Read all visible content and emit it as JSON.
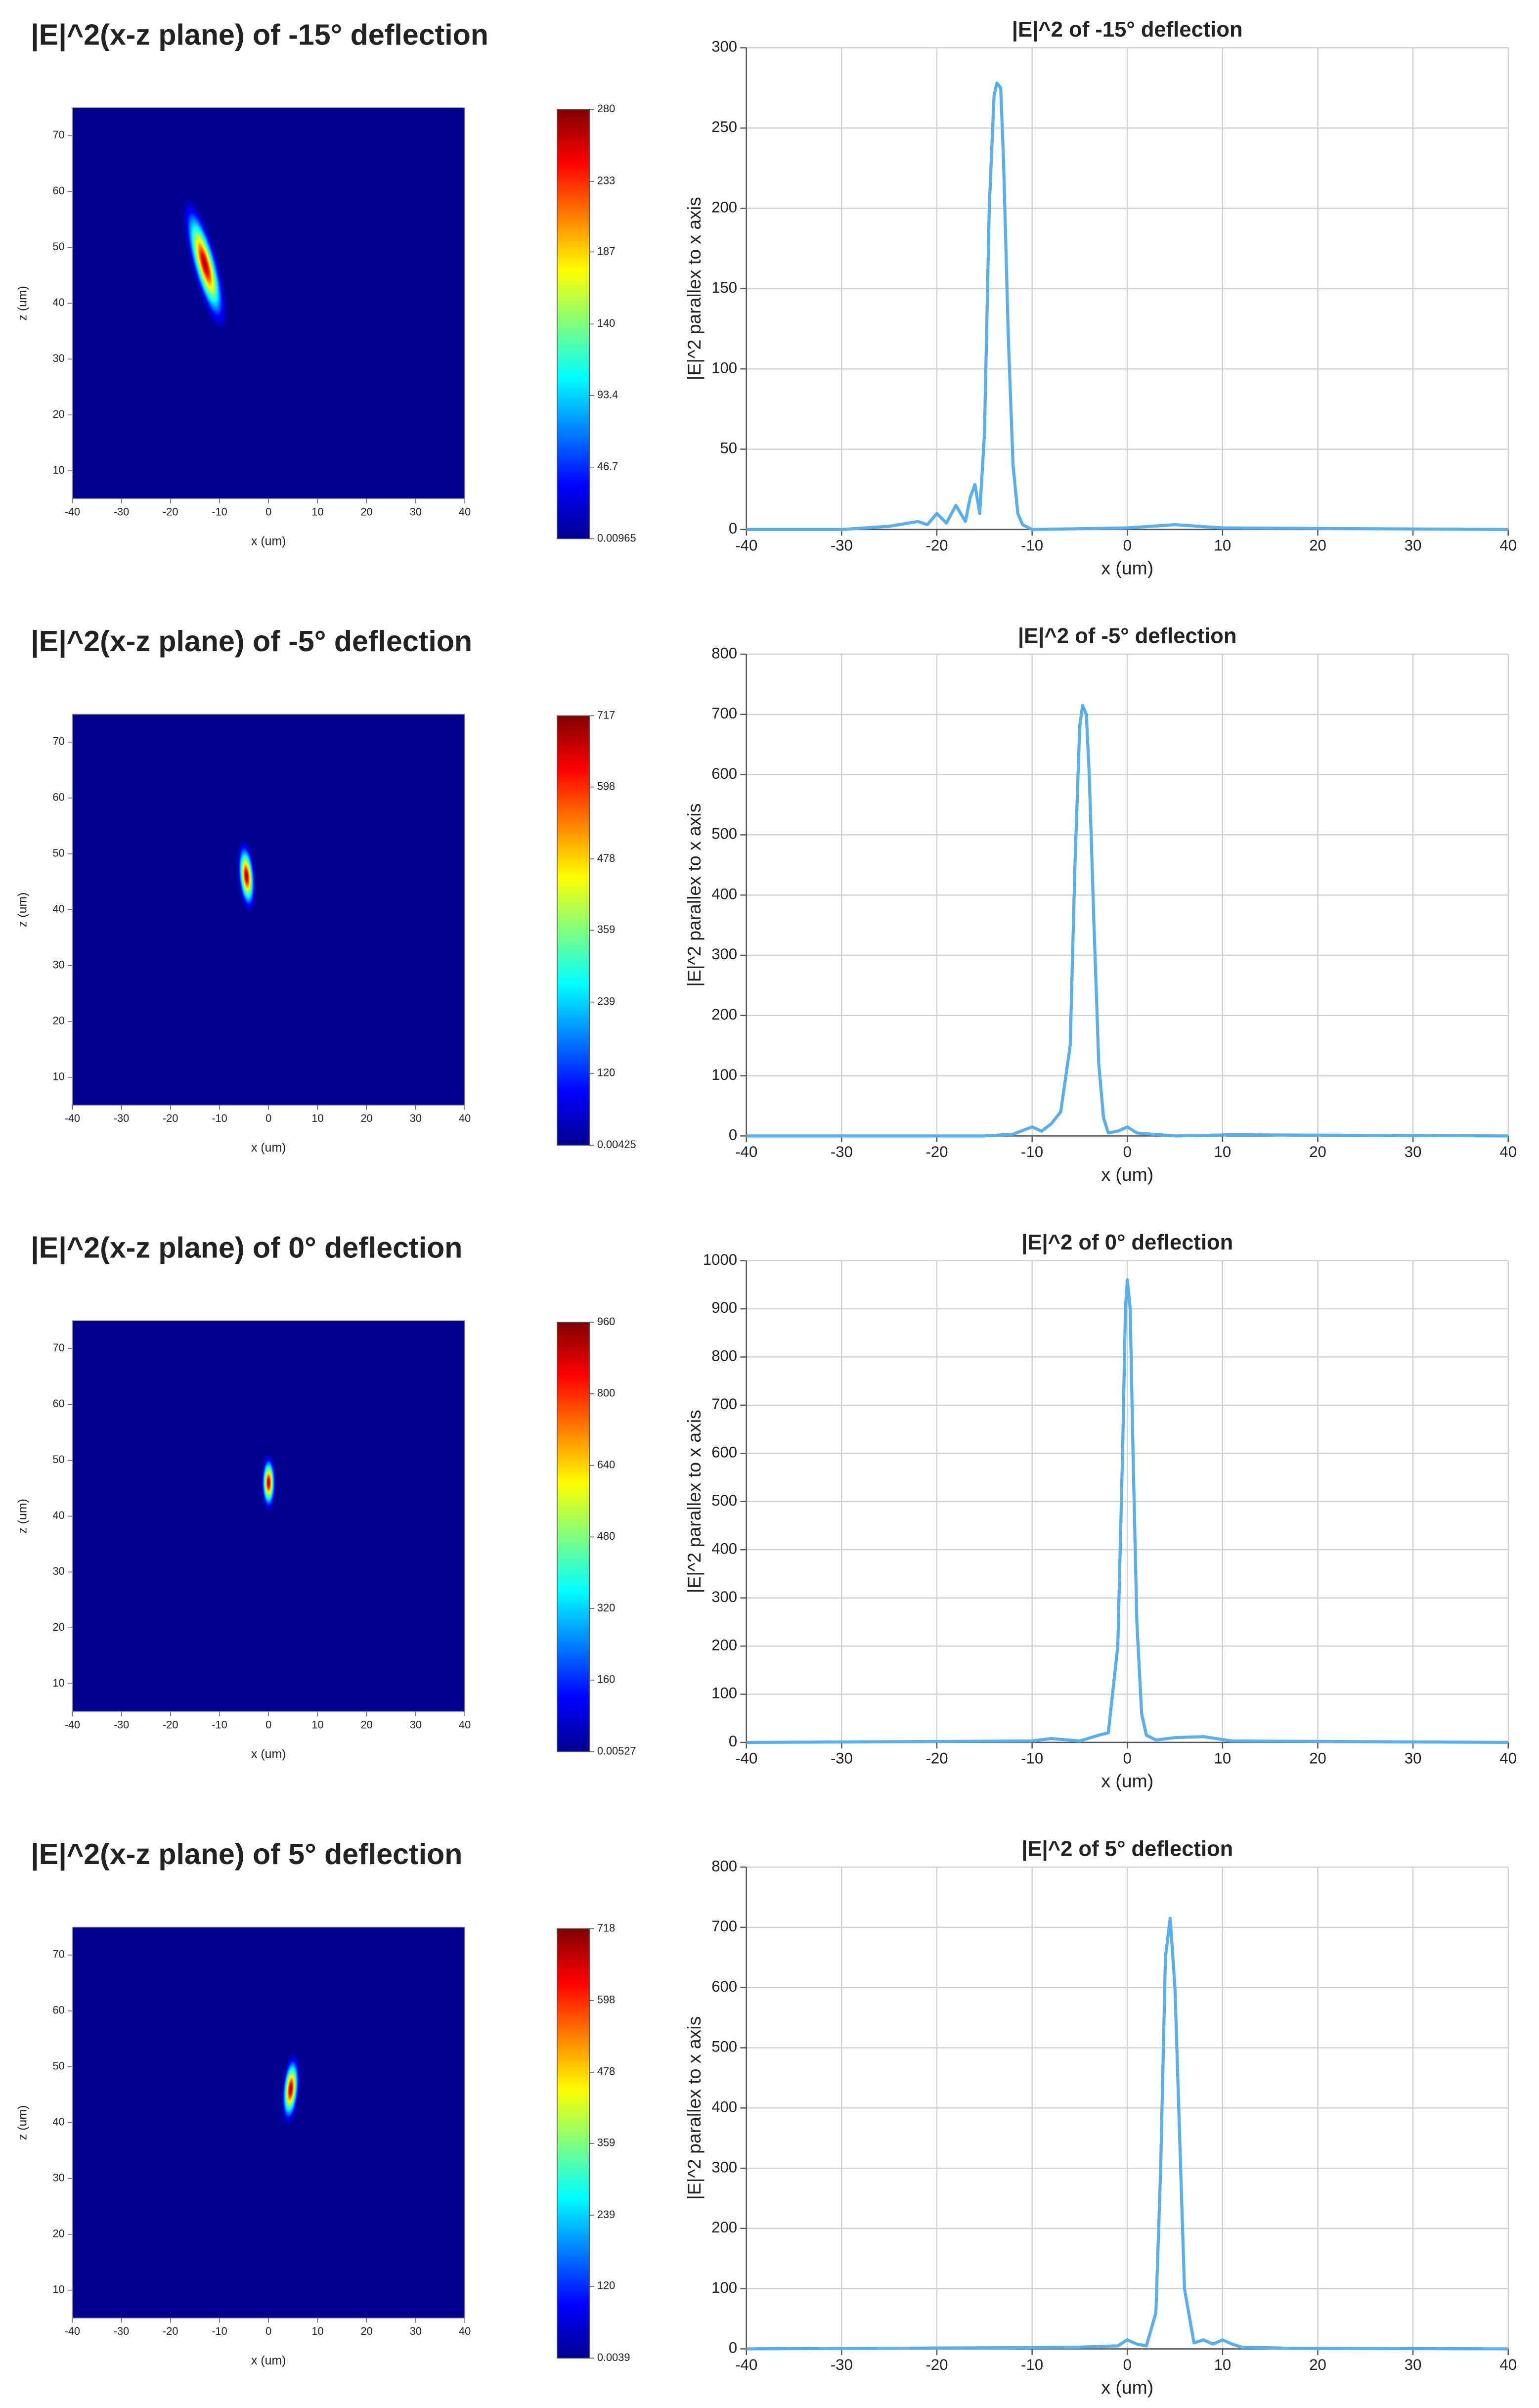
{
  "chart_data": [
    {
      "type": "heatmap",
      "title": "|E|^2(x-z plane) of -15° deflection",
      "xlabel": "x (um)",
      "ylabel": "z (um)",
      "xlim": [
        -40,
        40
      ],
      "xticks": [
        -40,
        -30,
        -20,
        -10,
        0,
        10,
        20,
        30,
        40
      ],
      "ylim": [
        5,
        75
      ],
      "yticks": [
        10,
        20,
        30,
        40,
        50,
        60,
        70
      ],
      "clim": [
        0.00965,
        280
      ],
      "cticks": [
        280,
        233,
        187,
        140,
        93.4,
        46.7,
        0.00965
      ],
      "peak": {
        "x": -13,
        "z": 47,
        "value": 280
      }
    },
    {
      "type": "line",
      "title": "|E|^2 of -15° deflection",
      "xlabel": "x (um)",
      "ylabel": "|E|^2 parallex to x axis",
      "color": "#5aaeea",
      "grid": true,
      "xlim": [
        -40,
        40
      ],
      "xticks": [
        -40,
        -30,
        -20,
        -10,
        0,
        10,
        20,
        30,
        40
      ],
      "ylim": [
        0,
        300
      ],
      "yticks": [
        0,
        50,
        100,
        150,
        200,
        250,
        300
      ],
      "x": [
        -40,
        -30,
        -25,
        -22,
        -21,
        -20,
        -19,
        -18,
        -17,
        -16.5,
        -16,
        -15.5,
        -15,
        -14.5,
        -14,
        -13.7,
        -13.3,
        -13,
        -12.5,
        -12,
        -11.5,
        -11,
        -10,
        0,
        5,
        10,
        40
      ],
      "values": [
        0,
        0,
        2,
        5,
        3,
        10,
        4,
        15,
        5,
        20,
        28,
        10,
        60,
        200,
        270,
        278,
        275,
        230,
        120,
        40,
        10,
        3,
        0,
        1,
        3,
        1,
        0
      ]
    },
    {
      "type": "heatmap",
      "title": "|E|^2(x-z plane) of -5° deflection",
      "xlabel": "x (um)",
      "ylabel": "z (um)",
      "xlim": [
        -40,
        40
      ],
      "xticks": [
        -40,
        -30,
        -20,
        -10,
        0,
        10,
        20,
        30,
        40
      ],
      "ylim": [
        5,
        75
      ],
      "yticks": [
        10,
        20,
        30,
        40,
        50,
        60,
        70
      ],
      "clim": [
        0.00425,
        717
      ],
      "cticks": [
        717,
        598,
        478,
        359,
        239,
        120,
        0.00425
      ],
      "peak": {
        "x": -4.5,
        "z": 46,
        "value": 717
      }
    },
    {
      "type": "line",
      "title": "|E|^2 of -5° deflection",
      "xlabel": "x (um)",
      "ylabel": "|E|^2 parallex to x axis",
      "color": "#5aaeea",
      "grid": true,
      "xlim": [
        -40,
        40
      ],
      "xticks": [
        -40,
        -30,
        -20,
        -10,
        0,
        10,
        20,
        30,
        40
      ],
      "ylim": [
        0,
        800
      ],
      "yticks": [
        0,
        100,
        200,
        300,
        400,
        500,
        600,
        700,
        800
      ],
      "x": [
        -40,
        -15,
        -12,
        -10,
        -9,
        -8,
        -7,
        -6,
        -5.5,
        -5,
        -4.7,
        -4.3,
        -4,
        -3.5,
        -3,
        -2.5,
        -2,
        -1,
        0,
        1,
        5,
        11,
        40
      ],
      "values": [
        0,
        0,
        3,
        15,
        8,
        20,
        40,
        150,
        450,
        680,
        715,
        700,
        600,
        350,
        120,
        30,
        5,
        8,
        15,
        5,
        0,
        2,
        0
      ]
    },
    {
      "type": "heatmap",
      "title": "|E|^2(x-z plane) of 0° deflection",
      "xlabel": "x (um)",
      "ylabel": "z (um)",
      "xlim": [
        -40,
        40
      ],
      "xticks": [
        -40,
        -30,
        -20,
        -10,
        0,
        10,
        20,
        30,
        40
      ],
      "ylim": [
        5,
        75
      ],
      "yticks": [
        10,
        20,
        30,
        40,
        50,
        60,
        70
      ],
      "clim": [
        0.00527,
        960
      ],
      "cticks": [
        960,
        800,
        640,
        480,
        320,
        160,
        0.00527
      ],
      "peak": {
        "x": 0,
        "z": 46,
        "value": 960
      }
    },
    {
      "type": "line",
      "title": "|E|^2 of 0° deflection",
      "xlabel": "x (um)",
      "ylabel": "|E|^2 parallex to x axis",
      "color": "#5aaeea",
      "grid": true,
      "xlim": [
        -40,
        40
      ],
      "xticks": [
        -40,
        -30,
        -20,
        -10,
        0,
        10,
        20,
        30,
        40
      ],
      "ylim": [
        0,
        1000
      ],
      "yticks": [
        0,
        100,
        200,
        300,
        400,
        500,
        600,
        700,
        800,
        900,
        1000
      ],
      "x": [
        -40,
        -10,
        -8,
        -5,
        -3,
        -2,
        -1,
        -0.5,
        -0.2,
        0,
        0.3,
        0.6,
        1,
        1.5,
        2,
        3,
        5,
        8,
        11,
        40
      ],
      "values": [
        0,
        3,
        8,
        3,
        15,
        20,
        200,
        600,
        900,
        960,
        900,
        600,
        250,
        60,
        15,
        5,
        10,
        12,
        3,
        0
      ]
    },
    {
      "type": "heatmap",
      "title": "|E|^2(x-z plane) of 5° deflection",
      "xlabel": "x (um)",
      "ylabel": "z (um)",
      "xlim": [
        -40,
        40
      ],
      "xticks": [
        -40,
        -30,
        -20,
        -10,
        0,
        10,
        20,
        30,
        40
      ],
      "ylim": [
        5,
        75
      ],
      "yticks": [
        10,
        20,
        30,
        40,
        50,
        60,
        70
      ],
      "clim": [
        0.0039,
        718
      ],
      "cticks": [
        718,
        598,
        478,
        359,
        239,
        120,
        0.0039
      ],
      "peak": {
        "x": 4.5,
        "z": 46,
        "value": 718
      }
    },
    {
      "type": "line",
      "title": "|E|^2 of 5° deflection",
      "xlabel": "x (um)",
      "ylabel": "|E|^2 parallex to x axis",
      "color": "#5aaeea",
      "grid": true,
      "xlim": [
        -40,
        40
      ],
      "xticks": [
        -40,
        -30,
        -20,
        -10,
        0,
        10,
        20,
        30,
        40
      ],
      "ylim": [
        0,
        800
      ],
      "yticks": [
        0,
        100,
        200,
        300,
        400,
        500,
        600,
        700,
        800
      ],
      "x": [
        -40,
        -12,
        -5,
        -1,
        0,
        1,
        2,
        3,
        3.5,
        4,
        4.5,
        5,
        5.5,
        6,
        7,
        8,
        9,
        10,
        11,
        12,
        17,
        40
      ],
      "values": [
        0,
        2,
        3,
        5,
        15,
        8,
        5,
        60,
        300,
        650,
        715,
        600,
        350,
        100,
        10,
        15,
        8,
        15,
        8,
        3,
        1,
        0
      ]
    }
  ]
}
